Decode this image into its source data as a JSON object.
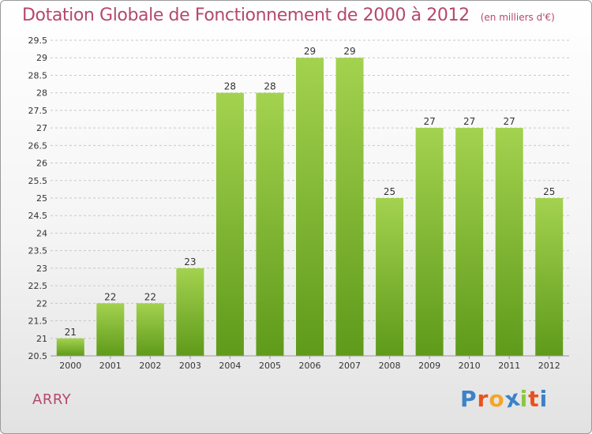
{
  "header": {
    "title": "Dotation Globale de Fonctionnement de 2000 à 2012",
    "subtitle": "(en milliers d'€)"
  },
  "footer": {
    "place": "ARRY",
    "logo_text": "Proxiti",
    "logo_colors": [
      "#3c82c8",
      "#e8521e",
      "#f5a623",
      "#3c82c8",
      "#8cc63f",
      "#e8521e",
      "#3c82c8"
    ]
  },
  "colors": {
    "bar_top": "#a3d24f",
    "bar_bottom": "#5f9a1a",
    "accent": "#b5486e"
  },
  "chart_data": {
    "type": "bar",
    "title": "Dotation Globale de Fonctionnement de 2000 à 2012",
    "subtitle": "(en milliers d'€)",
    "categories": [
      "2000",
      "2001",
      "2002",
      "2003",
      "2004",
      "2005",
      "2006",
      "2007",
      "2008",
      "2009",
      "2010",
      "2011",
      "2012"
    ],
    "values": [
      21,
      22,
      22,
      23,
      28,
      28,
      29,
      29,
      25,
      27,
      27,
      27,
      25
    ],
    "ylim": [
      20.5,
      29.5
    ],
    "yticks": [
      "20.5",
      "21",
      "21.5",
      "22",
      "22.5",
      "23",
      "23.5",
      "24",
      "24.5",
      "25",
      "25.5",
      "26",
      "26.5",
      "27",
      "27.5",
      "28",
      "28.5",
      "29",
      "29.5"
    ],
    "grid": true,
    "legend": "none"
  }
}
